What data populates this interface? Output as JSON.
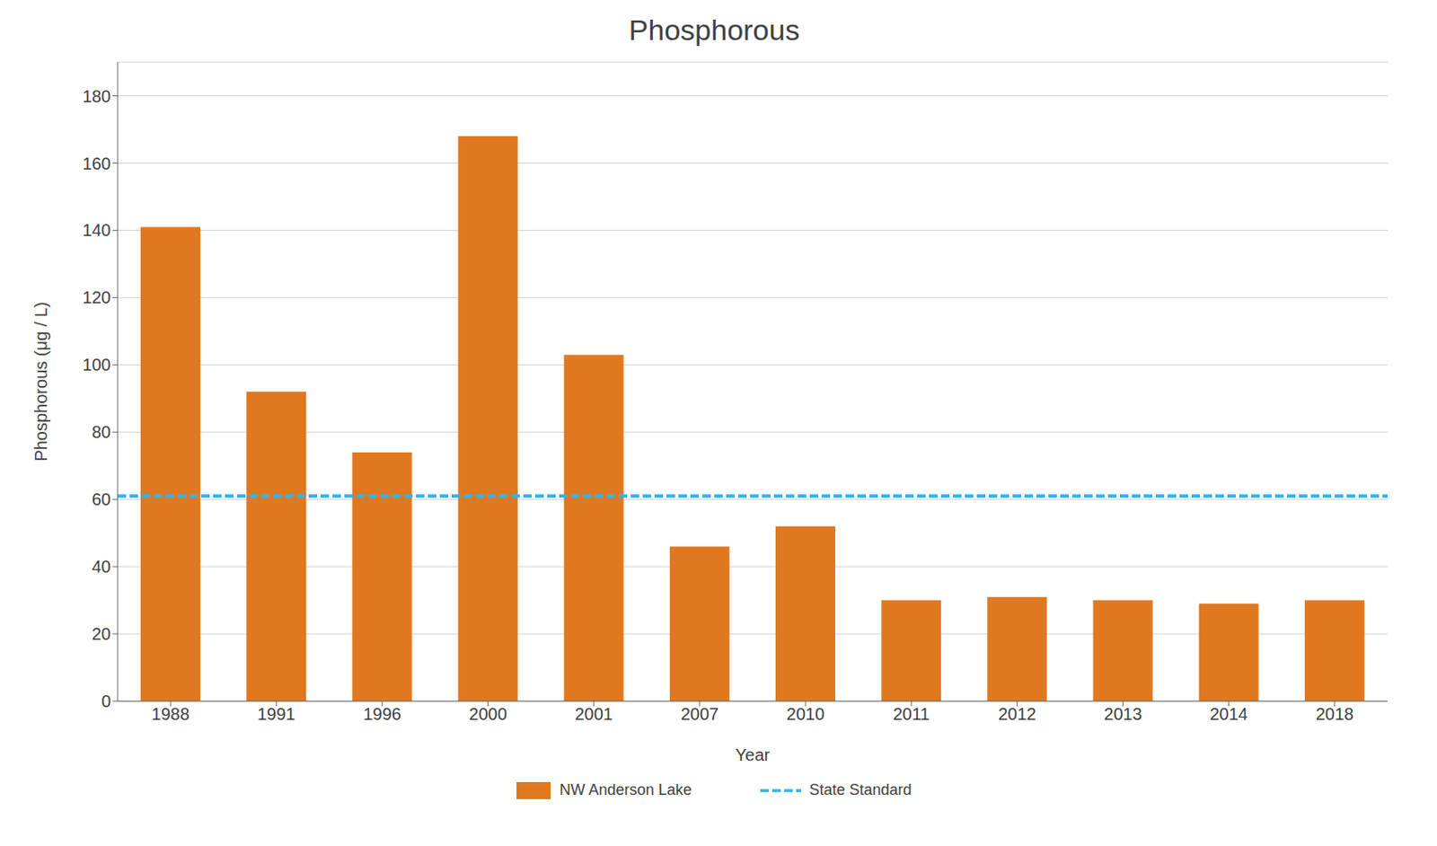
{
  "chart_data": {
    "type": "bar",
    "title": "Phosphorous",
    "xlabel": "Year",
    "ylabel": "Phosphorous (μg / L)",
    "categories": [
      "1988",
      "1991",
      "1996",
      "2000",
      "2001",
      "2007",
      "2010",
      "2011",
      "2012",
      "2013",
      "2014",
      "2018"
    ],
    "series": [
      {
        "name": "NW Anderson Lake",
        "color": "#E07820",
        "values": [
          141,
          92,
          74,
          168,
          103,
          46,
          52,
          30,
          31,
          30,
          29,
          30
        ]
      }
    ],
    "reference_lines": [
      {
        "name": "State Standard",
        "value": 61,
        "color": "#29B6F6",
        "line_style": "dashed"
      }
    ],
    "ylim": [
      0,
      190
    ],
    "yticks": [
      0,
      20,
      40,
      60,
      80,
      100,
      120,
      140,
      160,
      180
    ],
    "grid": true,
    "legend": "bottom"
  }
}
